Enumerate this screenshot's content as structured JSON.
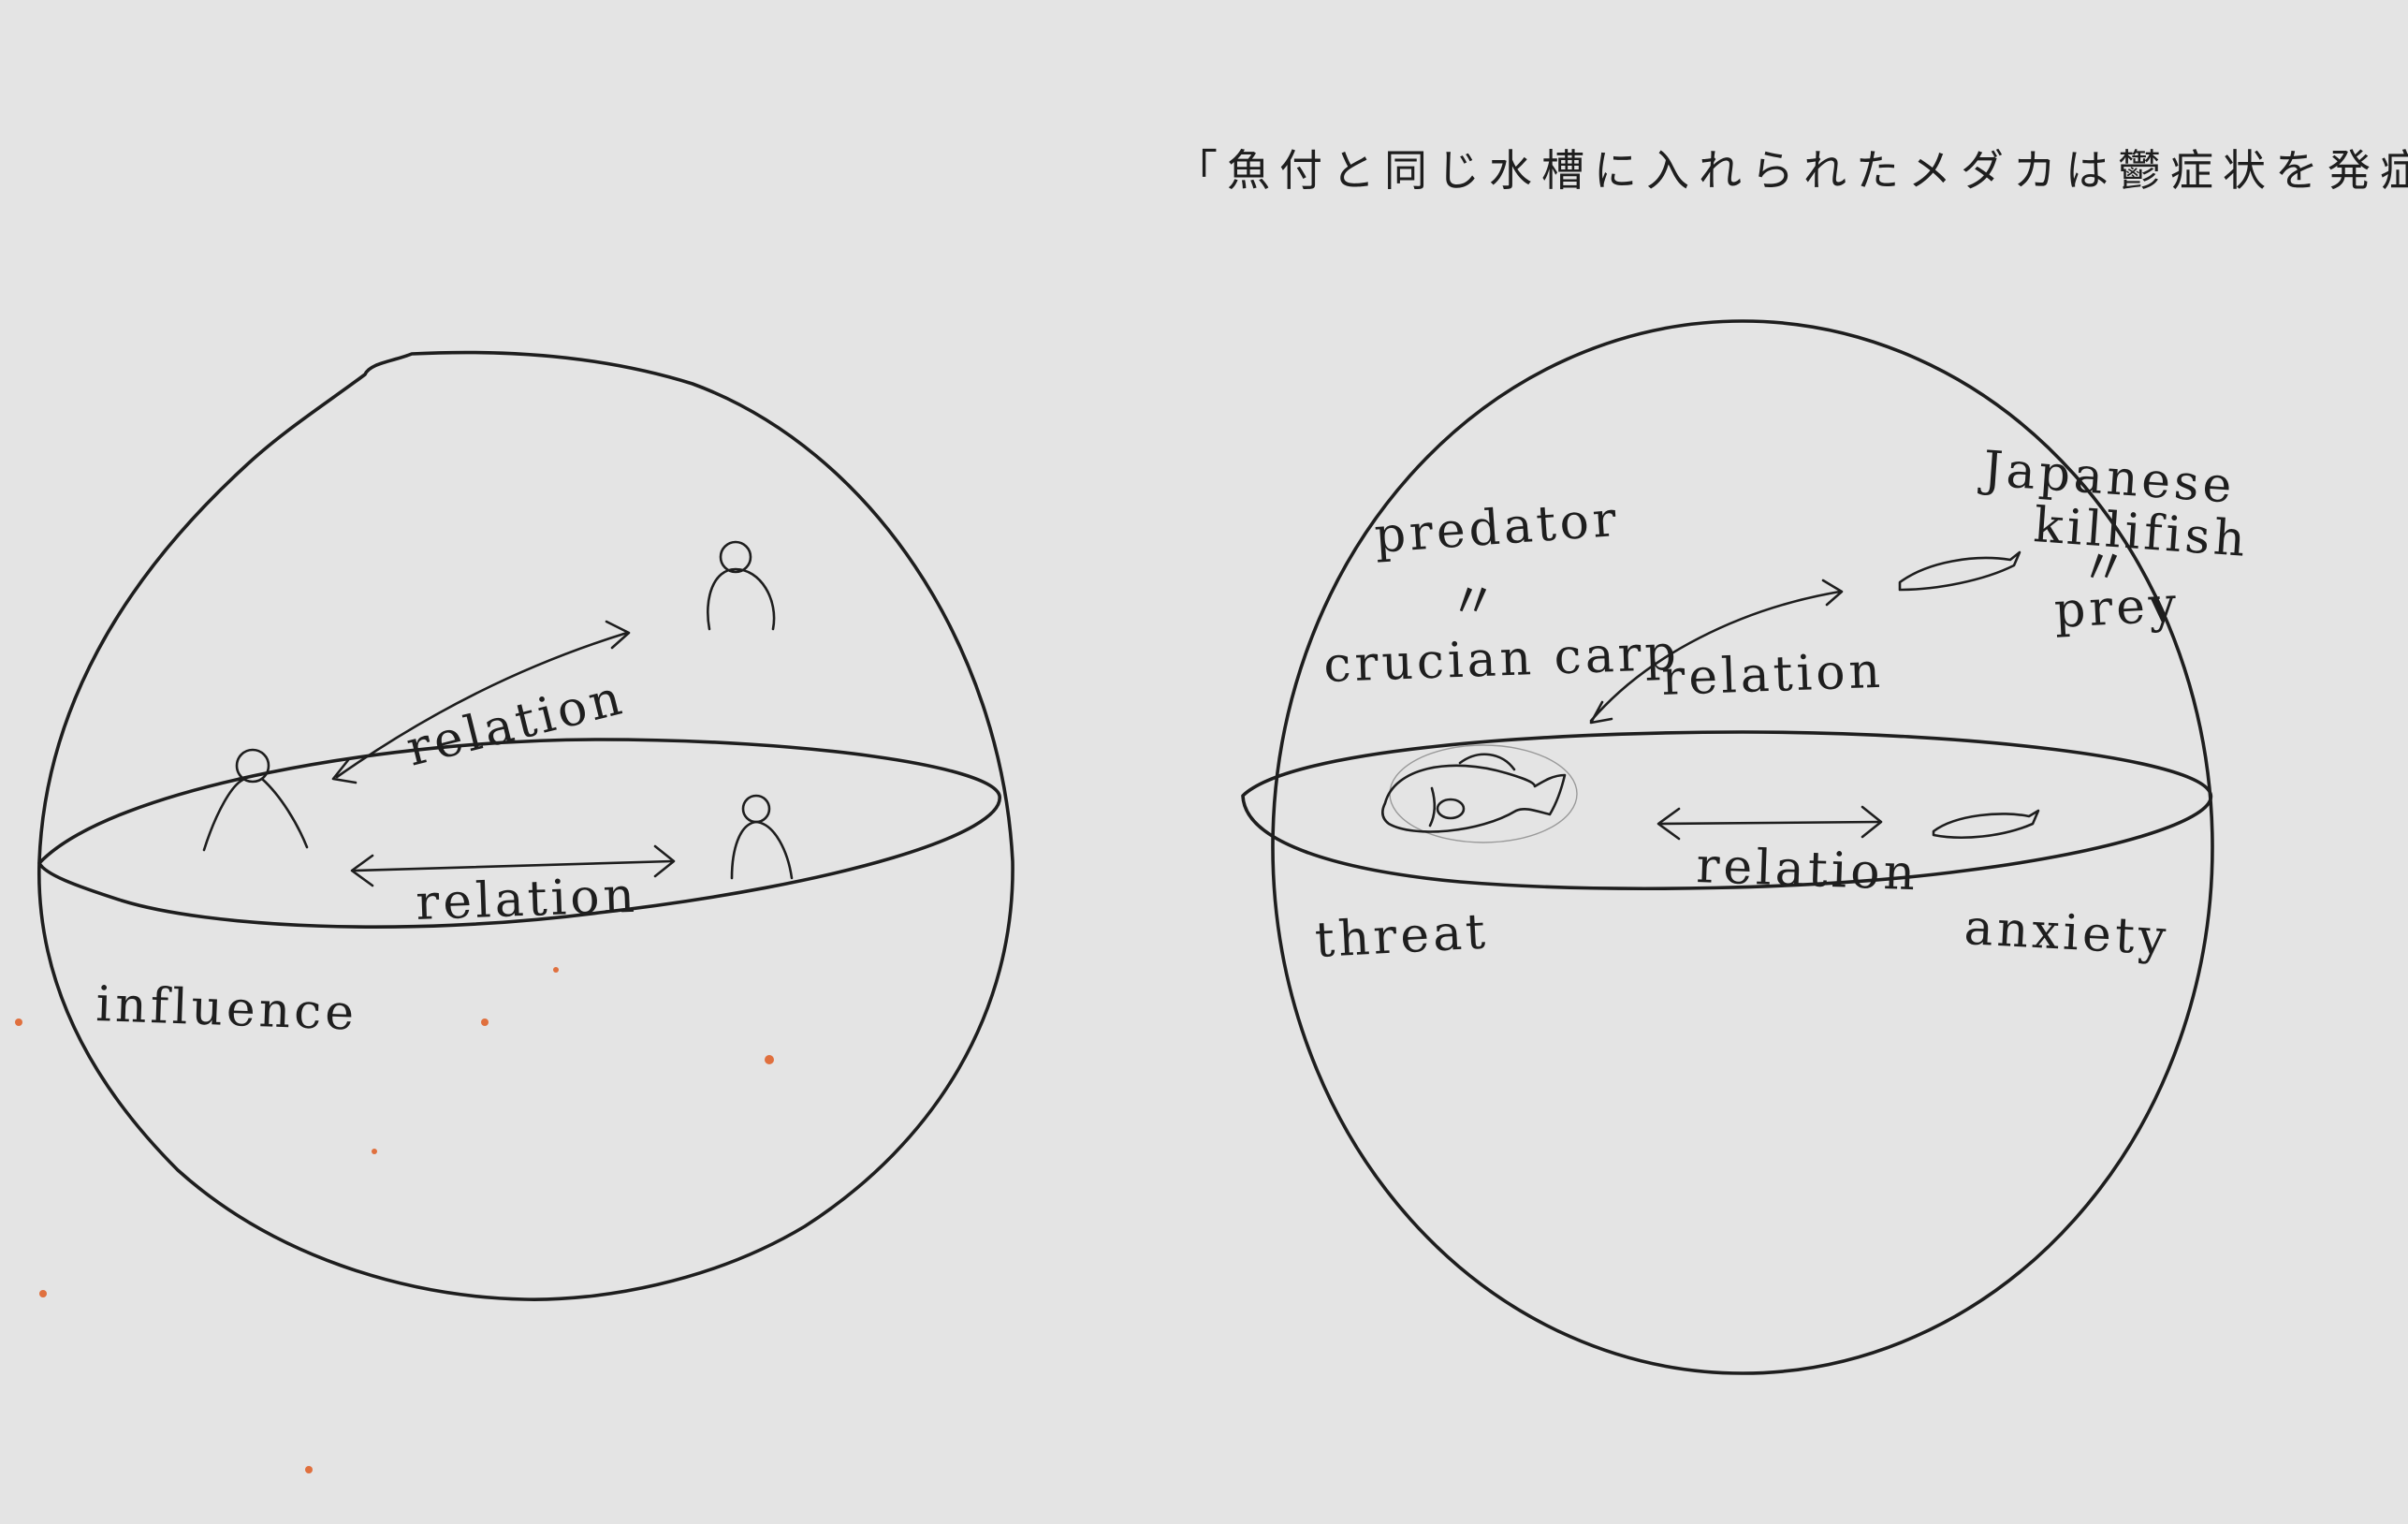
{
  "caption": "「魚付と同じ水槽に入れられたメダカは鬱症状を発症する」",
  "left_diagram": {
    "label_upper_arrow": "relation",
    "label_lower_arrow": "relation",
    "label_bottom": "influence"
  },
  "right_diagram": {
    "predator_label": "predator",
    "predator_equals": "〃",
    "predator_name": "crucian carp",
    "prey_name_line1": "Japanese",
    "prey_name_line2": "killifish",
    "prey_equals": "〃",
    "prey_label": "prey",
    "label_upper_arrow": "relation",
    "label_lower_arrow": "relation",
    "label_threat": "threat",
    "label_anxiety": "anxiety"
  },
  "colors": {
    "paper": "#e4e4e4",
    "ink": "#1e1e1e",
    "specks": "#e0703e"
  }
}
